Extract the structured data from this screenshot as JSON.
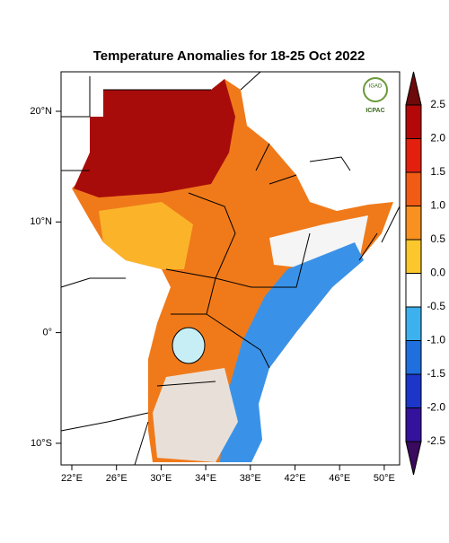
{
  "title": "Temperature Anomalies for 18-25 Oct 2022",
  "logo": {
    "top": "IGAD",
    "bottom": "ICPAC"
  },
  "lat_labels": [
    "20°N",
    "10°N",
    "0°",
    "10°S"
  ],
  "lon_labels": [
    "22°E",
    "26°E",
    "30°E",
    "34°E",
    "38°E",
    "42°E",
    "46°E",
    "50°E"
  ],
  "colorbar": {
    "labels": [
      "2.5",
      "2.0",
      "1.5",
      "1.0",
      "0.5",
      "0.0",
      "-0.5",
      "-1.0",
      "-1.5",
      "-2.0",
      "-2.5"
    ],
    "colors": [
      "#6e0a0a",
      "#b40808",
      "#e3200e",
      "#f15b14",
      "#f8911f",
      "#fcc72c",
      "#ffffff",
      "#3cb1ee",
      "#1f6fdf",
      "#1b36c8",
      "#35129c",
      "#3a0a5e"
    ]
  }
}
